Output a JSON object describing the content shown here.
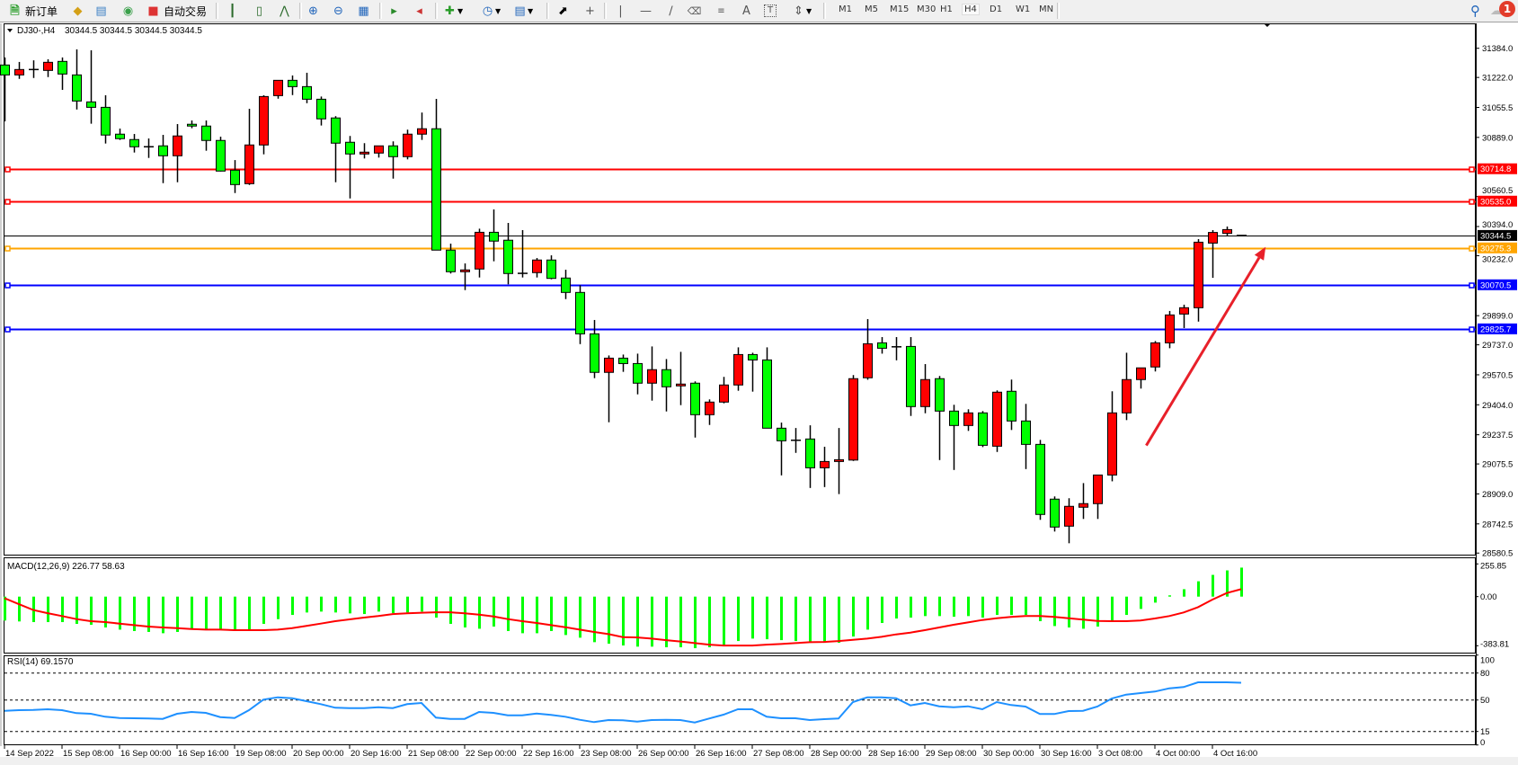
{
  "toolbar": {
    "new_order_label": "新订单",
    "auto_trade_label": "自动交易",
    "timeframes": [
      "M1",
      "M5",
      "M15",
      "M30",
      "H1",
      "H4",
      "D1",
      "W1",
      "MN"
    ],
    "active_timeframe": "H4",
    "notification_count": "1",
    "icons": [
      "new-order-icon",
      "market-watch-icon",
      "navigator-icon",
      "signals-icon",
      "auto-trading-icon",
      "bar-chart-icon",
      "candlestick-icon",
      "line-chart-icon",
      "zoom-in-icon",
      "zoom-out-icon",
      "tile-windows-icon",
      "auto-scroll-icon",
      "chart-shift-icon",
      "indicators-icon",
      "periods-icon",
      "templates-icon",
      "cursor-icon",
      "crosshair-icon",
      "vertical-line-icon",
      "horizontal-line-icon",
      "trendline-icon",
      "equidistant-channel-icon",
      "fibonacci-icon",
      "text-icon",
      "text-label-icon",
      "arrows-icon",
      "search-icon",
      "chat-icon"
    ]
  },
  "chart_header": {
    "symbol": "DJ30-,H4",
    "ohlc": "30344.5 30344.5 30344.5 30344.5"
  },
  "colors": {
    "bull_candle": "#ff0000",
    "bear_candle": "#00ff00",
    "macd_histogram": "#00ff00",
    "macd_signal": "#ff0000",
    "rsi_line": "#1e90ff",
    "arrow": "#e8202a"
  },
  "chart_data": [
    {
      "type": "candlestick",
      "symbol": "DJ30-",
      "timeframe": "H4",
      "ohlc_order": [
        "open",
        "high",
        "low",
        "close"
      ],
      "candles": [
        [
          31291,
          31333,
          30978,
          31236
        ],
        [
          31236,
          31308,
          31214,
          31266
        ],
        [
          31266,
          31317,
          31219,
          31266
        ],
        [
          31261,
          31323,
          31224,
          31306
        ],
        [
          31311,
          31333,
          31153,
          31241
        ],
        [
          31236,
          31378,
          31044,
          31091
        ],
        [
          31086,
          31373,
          30965,
          31056
        ],
        [
          31056,
          31123,
          30855,
          30902
        ],
        [
          30907,
          30938,
          30875,
          30882
        ],
        [
          30877,
          30908,
          30805,
          30837
        ],
        [
          30837,
          30883,
          30775,
          30837
        ],
        [
          30842,
          30903,
          30635,
          30787
        ],
        [
          30787,
          30963,
          30640,
          30897
        ],
        [
          30962,
          30983,
          30940,
          30952
        ],
        [
          30952,
          30983,
          30815,
          30872
        ],
        [
          30872,
          30893,
          30700,
          30702
        ],
        [
          30707,
          30763,
          30580,
          30627
        ],
        [
          30632,
          31048,
          30625,
          30847
        ],
        [
          30847,
          31123,
          30795,
          31116
        ],
        [
          31121,
          31206,
          31104,
          31206
        ],
        [
          31206,
          31233,
          31124,
          31171
        ],
        [
          31171,
          31248,
          31079,
          31101
        ],
        [
          31101,
          31116,
          30955,
          30992
        ],
        [
          30997,
          31007,
          30640,
          30857
        ],
        [
          30862,
          30897,
          30550,
          30797
        ],
        [
          30797,
          30857,
          30772,
          30807
        ],
        [
          30802,
          30842,
          30777,
          30842
        ],
        [
          30842,
          30867,
          30660,
          30782
        ],
        [
          30782,
          30932,
          30767,
          30907
        ],
        [
          30907,
          31027,
          30875,
          30937
        ],
        [
          30937,
          31103,
          30263,
          30263
        ],
        [
          30263,
          30299,
          30133,
          30143
        ],
        [
          30143,
          30189,
          30041,
          30153
        ],
        [
          30158,
          30382,
          30111,
          30362
        ],
        [
          30362,
          30489,
          30201,
          30313
        ],
        [
          30318,
          30414,
          30073,
          30133
        ],
        [
          30134,
          30374,
          30111,
          30134
        ],
        [
          30138,
          30219,
          30111,
          30208
        ],
        [
          30208,
          30234,
          30101,
          30106
        ],
        [
          30108,
          30154,
          29991,
          30028
        ],
        [
          30028,
          30068,
          29741,
          29798
        ],
        [
          29798,
          29875,
          29552,
          29584
        ],
        [
          29584,
          29678,
          29307,
          29663
        ],
        [
          29663,
          29683,
          29587,
          29633
        ],
        [
          29633,
          29688,
          29462,
          29524
        ],
        [
          29524,
          29728,
          29427,
          29599
        ],
        [
          29599,
          29658,
          29367,
          29504
        ],
        [
          29509,
          29698,
          29402,
          29519
        ],
        [
          29524,
          29534,
          29222,
          29349
        ],
        [
          29349,
          29434,
          29292,
          29419
        ],
        [
          29419,
          29559,
          29412,
          29514
        ],
        [
          29514,
          29723,
          29482,
          29683
        ],
        [
          29683,
          29693,
          29477,
          29653
        ],
        [
          29653,
          29723,
          29274,
          29274
        ],
        [
          29274,
          29305,
          29012,
          29204
        ],
        [
          29207,
          29275,
          29137,
          29207
        ],
        [
          29214,
          29290,
          28942,
          29054
        ],
        [
          29054,
          29171,
          28947,
          29089
        ],
        [
          29089,
          29275,
          28908,
          29099
        ],
        [
          29097,
          29569,
          29092,
          29549
        ],
        [
          29554,
          29880,
          29543,
          29743
        ],
        [
          29748,
          29780,
          29688,
          29718
        ],
        [
          29726,
          29780,
          29651,
          29726
        ],
        [
          29728,
          29780,
          29342,
          29394
        ],
        [
          29394,
          29630,
          29357,
          29544
        ],
        [
          29549,
          29564,
          29097,
          29369
        ],
        [
          29369,
          29404,
          29042,
          29289
        ],
        [
          29289,
          29379,
          29259,
          29359
        ],
        [
          29359,
          29369,
          29169,
          29179
        ],
        [
          29174,
          29484,
          29142,
          29474
        ],
        [
          29479,
          29544,
          29264,
          29314
        ],
        [
          29314,
          29409,
          29047,
          29184
        ],
        [
          29184,
          29209,
          28765,
          28795
        ],
        [
          28880,
          28895,
          28700,
          28725
        ],
        [
          28730,
          28885,
          28635,
          28840
        ],
        [
          28835,
          28969,
          28770,
          28855
        ],
        [
          28855,
          29014,
          28770,
          29014
        ],
        [
          29014,
          29479,
          28979,
          29359
        ],
        [
          29359,
          29693,
          29319,
          29544
        ],
        [
          29544,
          29609,
          29494,
          29609
        ],
        [
          29614,
          29758,
          29589,
          29748
        ],
        [
          29748,
          29925,
          29718,
          29903
        ],
        [
          29908,
          29960,
          29830,
          29943
        ],
        [
          29943,
          30324,
          29866,
          30307
        ],
        [
          30302,
          30374,
          30109,
          30361
        ],
        [
          30356,
          30394,
          30340,
          30377
        ],
        [
          30344.5,
          30344.5,
          30344.5,
          30344.5
        ]
      ],
      "ylim": [
        28580.5,
        31470
      ],
      "y_ticks": [
        "31384.0",
        "31222.0",
        "31055.5",
        "30889.0",
        "30560.5",
        "30394.0",
        "30232.0",
        "29899.0",
        "29737.0",
        "29570.5",
        "29404.0",
        "29237.5",
        "29075.5",
        "28909.0",
        "28742.5",
        "28580.5"
      ],
      "x_tick_labels": [
        "14 Sep 2022",
        "15 Sep 08:00",
        "16 Sep 00:00",
        "16 Sep 16:00",
        "19 Sep 08:00",
        "20 Sep 00:00",
        "20 Sep 16:00",
        "21 Sep 08:00",
        "22 Sep 00:00",
        "22 Sep 16:00",
        "23 Sep 08:00",
        "26 Sep 00:00",
        "26 Sep 16:00",
        "27 Sep 08:00",
        "28 Sep 00:00",
        "28 Sep 16:00",
        "29 Sep 08:00",
        "30 Sep 00:00",
        "30 Sep 16:00",
        "3 Oct 08:00",
        "4 Oct 00:00",
        "4 Oct 16:00"
      ],
      "x_tick_every_bars": 4,
      "current_price": {
        "value": 30344.5,
        "label": "30344.5",
        "color": "#000000"
      },
      "horizontal_levels": [
        {
          "value": 30714.8,
          "label": "30714.8",
          "color": "#ff0000"
        },
        {
          "value": 30535.0,
          "label": "30535.0",
          "color": "#ff0000"
        },
        {
          "value": 30275.3,
          "label": "30275.3",
          "color": "#ffa500"
        },
        {
          "value": 30070.5,
          "label": "30070.5",
          "color": "#0000ff"
        },
        {
          "value": 29825.7,
          "label": "29825.7",
          "color": "#0000ff"
        }
      ],
      "annotations": [
        {
          "type": "arrow",
          "from_bar": 79.4,
          "from_price": 29178,
          "to_bar": 87.7,
          "to_price": 30281,
          "color": "#e8202a"
        }
      ],
      "grid": false
    },
    {
      "type": "bar",
      "title": "MACD(12,26,9) 226.77 58.63",
      "ylim": [
        -383.81,
        255.85
      ],
      "y_ticks": [
        "255.85",
        "0.00",
        "-383.81"
      ],
      "series": [
        {
          "kind": "histogram",
          "values": [
            -187,
            -194,
            -199,
            -199,
            -199,
            -213,
            -220,
            -241,
            -258,
            -269,
            -276,
            -286,
            -276,
            -258,
            -258,
            -258,
            -262,
            -262,
            -213,
            -176,
            -143,
            -124,
            -117,
            -124,
            -131,
            -136,
            -117,
            -129,
            -124,
            -117,
            -164,
            -213,
            -241,
            -251,
            -234,
            -269,
            -286,
            -286,
            -269,
            -300,
            -321,
            -356,
            -368,
            -382,
            -391,
            -391,
            -396,
            -396,
            -403,
            -396,
            -380,
            -347,
            -328,
            -333,
            -340,
            -347,
            -356,
            -361,
            -361,
            -312,
            -258,
            -206,
            -171,
            -164,
            -152,
            -152,
            -157,
            -152,
            -164,
            -143,
            -143,
            -143,
            -192,
            -230,
            -241,
            -251,
            -234,
            -192,
            -143,
            -96,
            -47,
            10,
            58,
            120,
            170,
            205,
            226.77
          ]
        },
        {
          "kind": "signal-line",
          "values": [
            -12,
            -59,
            -105,
            -129,
            -152,
            -176,
            -192,
            -199,
            -211,
            -223,
            -234,
            -241,
            -246,
            -253,
            -258,
            -258,
            -262,
            -262,
            -262,
            -258,
            -246,
            -229,
            -211,
            -192,
            -178,
            -164,
            -152,
            -136,
            -131,
            -126,
            -122,
            -122,
            -131,
            -141,
            -155,
            -176,
            -192,
            -206,
            -223,
            -239,
            -258,
            -276,
            -293,
            -316,
            -319,
            -328,
            -340,
            -351,
            -363,
            -375,
            -382,
            -382,
            -382,
            -375,
            -370,
            -363,
            -356,
            -354,
            -347,
            -337,
            -328,
            -314,
            -295,
            -281,
            -262,
            -241,
            -220,
            -202,
            -183,
            -169,
            -159,
            -152,
            -152,
            -159,
            -169,
            -180,
            -190,
            -192,
            -192,
            -187,
            -171,
            -152,
            -124,
            -82,
            -23,
            28,
            58.63
          ]
        }
      ]
    },
    {
      "type": "line",
      "title": "RSI(14) 69.1570",
      "ylim": [
        0,
        100
      ],
      "y_ticks": [
        "100",
        "80",
        "50",
        "15",
        "0"
      ],
      "levels": [
        80,
        50,
        15
      ],
      "values": [
        38,
        38.7,
        39,
        39.7,
        38.7,
        35.4,
        34.7,
        31.4,
        30,
        29.7,
        29.4,
        29,
        34.7,
        36.7,
        35.7,
        31,
        30,
        38.7,
        50.4,
        53,
        52,
        48.7,
        45.4,
        41.4,
        41,
        41,
        42,
        41,
        45.4,
        46.7,
        30.4,
        29,
        29,
        36.7,
        35.7,
        33,
        33,
        35,
        33.4,
        31.4,
        28,
        25.4,
        27.7,
        27.5,
        26,
        27.7,
        28,
        27.7,
        25,
        29.4,
        33.7,
        39.7,
        39.7,
        31.4,
        29.7,
        29.7,
        27.7,
        28.7,
        29.4,
        47.7,
        53,
        53,
        52,
        44,
        46.7,
        43,
        42,
        43,
        39.7,
        47.7,
        44.4,
        42.7,
        34.4,
        34.4,
        37.7,
        38,
        42.7,
        51.7,
        56,
        57.7,
        59.4,
        63,
        64.4,
        69.7,
        69.7,
        69.7,
        69.157
      ]
    }
  ]
}
